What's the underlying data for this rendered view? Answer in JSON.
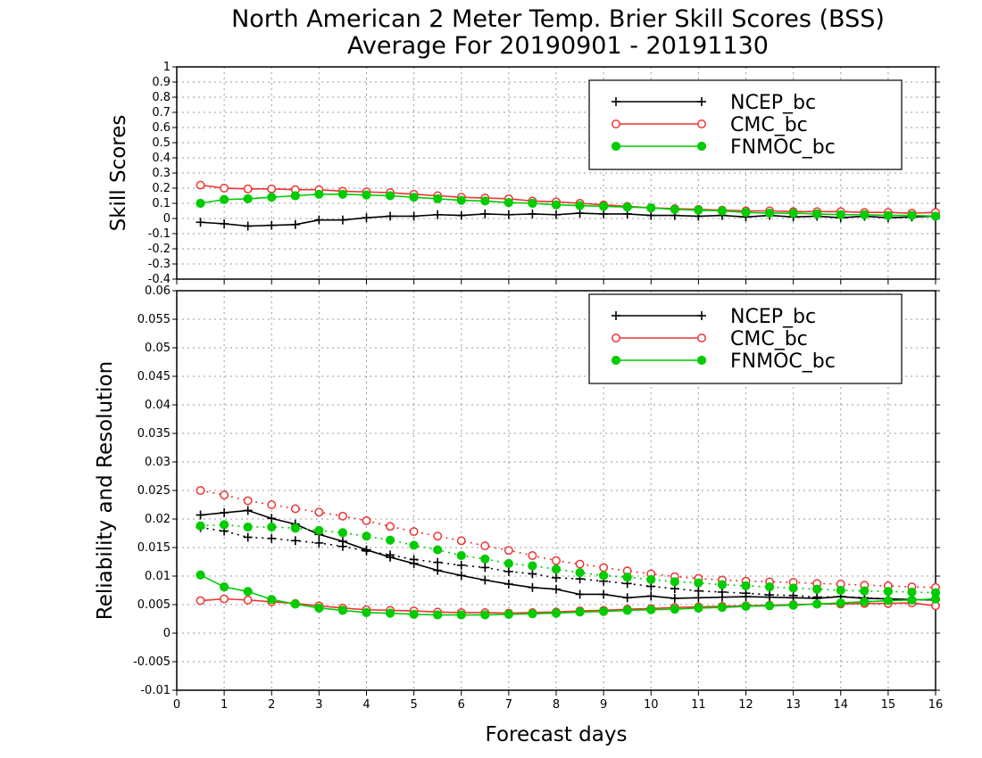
{
  "chart_data": [
    {
      "type": "line",
      "title": "North American 2 Meter Temp. Brier Skill Scores (BSS)",
      "subtitle": "Average For 20190901 - 20191130",
      "ylabel": "Skill Scores",
      "ylim": [
        -0.4,
        1
      ],
      "yticks": [
        "1",
        "0.9",
        "0.8",
        "0.7",
        "0.6",
        "0.5",
        "0.4",
        "0.3",
        "0.2",
        "0.1",
        "0",
        "-0.1",
        "-0.2",
        "-0.3",
        "-0.4"
      ],
      "xlim": [
        0,
        16
      ],
      "grid": true,
      "legend_position": "top-right",
      "x": [
        0.5,
        1,
        1.5,
        2,
        2.5,
        3,
        3.5,
        4,
        4.5,
        5,
        5.5,
        6,
        6.5,
        7,
        7.5,
        8,
        8.5,
        9,
        9.5,
        10,
        10.5,
        11,
        11.5,
        12,
        12.5,
        13,
        13.5,
        14,
        14.5,
        15,
        15.5,
        16
      ],
      "series": [
        {
          "name": "NCEP_bc",
          "color": "#000000",
          "marker": "plus",
          "line": "solid",
          "values": [
            -0.025,
            -0.035,
            -0.05,
            -0.045,
            -0.04,
            -0.01,
            -0.01,
            0.005,
            0.015,
            0.015,
            0.025,
            0.02,
            0.03,
            0.025,
            0.03,
            0.025,
            0.035,
            0.03,
            0.03,
            0.02,
            0.02,
            0.015,
            0.02,
            0.01,
            0.02,
            0.01,
            0.015,
            0.005,
            0.015,
            0.005,
            0.01,
            0.015
          ]
        },
        {
          "name": "CMC_bc",
          "color": "#ee3333",
          "marker": "open-circle",
          "line": "solid",
          "values": [
            0.22,
            0.2,
            0.195,
            0.195,
            0.19,
            0.19,
            0.18,
            0.175,
            0.17,
            0.16,
            0.15,
            0.14,
            0.135,
            0.13,
            0.115,
            0.11,
            0.1,
            0.09,
            0.08,
            0.07,
            0.065,
            0.06,
            0.055,
            0.05,
            0.05,
            0.045,
            0.045,
            0.045,
            0.04,
            0.04,
            0.035,
            0.04
          ]
        },
        {
          "name": "FNMOC_bc",
          "color": "#00cc00",
          "marker": "filled-circle",
          "line": "solid",
          "values": [
            0.1,
            0.125,
            0.13,
            0.14,
            0.15,
            0.16,
            0.16,
            0.155,
            0.15,
            0.14,
            0.13,
            0.12,
            0.115,
            0.105,
            0.1,
            0.09,
            0.085,
            0.08,
            0.075,
            0.07,
            0.06,
            0.055,
            0.05,
            0.04,
            0.035,
            0.035,
            0.03,
            0.025,
            0.025,
            0.02,
            0.02,
            0.015
          ]
        }
      ]
    },
    {
      "type": "line",
      "title": "",
      "ylabel": "Reliability and Resolution",
      "xlabel": "Forecast days",
      "ylim": [
        -0.01,
        0.06
      ],
      "yticks": [
        "0.06",
        "0.055",
        "0.05",
        "0.045",
        "0.04",
        "0.035",
        "0.03",
        "0.025",
        "0.02",
        "0.015",
        "0.01",
        "0.005",
        "0",
        "-0.005",
        "-0.01"
      ],
      "xlim": [
        0,
        16
      ],
      "xticks": [
        "0",
        "1",
        "2",
        "3",
        "4",
        "5",
        "6",
        "7",
        "8",
        "9",
        "10",
        "11",
        "12",
        "13",
        "14",
        "15",
        "16"
      ],
      "grid": true,
      "legend_position": "top-right",
      "x": [
        0.5,
        1,
        1.5,
        2,
        2.5,
        3,
        3.5,
        4,
        4.5,
        5,
        5.5,
        6,
        6.5,
        7,
        7.5,
        8,
        8.5,
        9,
        9.5,
        10,
        10.5,
        11,
        11.5,
        12,
        12.5,
        13,
        13.5,
        14,
        14.5,
        15,
        15.5,
        16
      ],
      "series": [
        {
          "name": "NCEP_bc",
          "color": "#000000",
          "marker": "plus",
          "line": "solid",
          "role": "reliability",
          "values": [
            0.0207,
            0.0211,
            0.0215,
            0.0201,
            0.0191,
            0.0173,
            0.0161,
            0.0146,
            0.0133,
            0.0122,
            0.011,
            0.0101,
            0.0093,
            0.0086,
            0.008,
            0.0077,
            0.0068,
            0.0068,
            0.0062,
            0.0065,
            0.0061,
            0.0062,
            0.0063,
            0.0064,
            0.0063,
            0.0062,
            0.0061,
            0.0064,
            0.0061,
            0.006,
            0.0059,
            0.0058
          ]
        },
        {
          "name": "NCEP_bc",
          "color": "#000000",
          "marker": "plus",
          "line": "dotted",
          "role": "resolution",
          "values": [
            0.0185,
            0.0179,
            0.0168,
            0.0166,
            0.0162,
            0.0158,
            0.0152,
            0.0144,
            0.0137,
            0.0129,
            0.0124,
            0.0119,
            0.0115,
            0.0108,
            0.0104,
            0.0097,
            0.0095,
            0.0091,
            0.0087,
            0.0082,
            0.0078,
            0.0074,
            0.0072,
            0.007,
            0.0067,
            0.0066,
            0.0063,
            0.0064,
            0.0062,
            0.006,
            0.0059,
            0.0058
          ]
        },
        {
          "name": "CMC_bc",
          "color": "#ee3333",
          "marker": "open-circle",
          "line": "solid",
          "role": "reliability",
          "values": [
            0.0057,
            0.006,
            0.0058,
            0.0055,
            0.0052,
            0.0048,
            0.0044,
            0.0041,
            0.004,
            0.0039,
            0.0037,
            0.0036,
            0.0036,
            0.0035,
            0.0036,
            0.0037,
            0.0039,
            0.004,
            0.0042,
            0.0043,
            0.0045,
            0.0046,
            0.0047,
            0.0048,
            0.0049,
            0.005,
            0.0051,
            0.0051,
            0.0052,
            0.0052,
            0.0053,
            0.0048
          ]
        },
        {
          "name": "CMC_bc",
          "color": "#ee3333",
          "marker": "open-circle",
          "line": "dotted",
          "role": "resolution",
          "values": [
            0.025,
            0.0242,
            0.0232,
            0.0225,
            0.0218,
            0.0212,
            0.0205,
            0.0197,
            0.0187,
            0.0178,
            0.017,
            0.0162,
            0.0153,
            0.0145,
            0.0136,
            0.0127,
            0.0121,
            0.0115,
            0.0109,
            0.0104,
            0.0099,
            0.0096,
            0.0093,
            0.0091,
            0.009,
            0.0089,
            0.0087,
            0.0086,
            0.0084,
            0.0083,
            0.0081,
            0.008
          ]
        },
        {
          "name": "FNMOC_bc",
          "color": "#00cc00",
          "marker": "filled-circle",
          "line": "solid",
          "role": "reliability",
          "values": [
            0.0102,
            0.0081,
            0.0073,
            0.0059,
            0.0051,
            0.0044,
            0.004,
            0.0036,
            0.0035,
            0.0033,
            0.0032,
            0.0032,
            0.0032,
            0.0033,
            0.0034,
            0.0035,
            0.0037,
            0.0038,
            0.004,
            0.0041,
            0.0042,
            0.0044,
            0.0045,
            0.0047,
            0.0048,
            0.0049,
            0.0051,
            0.0053,
            0.0055,
            0.0057,
            0.0058,
            0.006
          ]
        },
        {
          "name": "FNMOC_bc",
          "color": "#00cc00",
          "marker": "filled-circle",
          "line": "dotted",
          "role": "resolution",
          "values": [
            0.0188,
            0.019,
            0.0186,
            0.0186,
            0.0184,
            0.018,
            0.0176,
            0.017,
            0.0163,
            0.0154,
            0.0146,
            0.0136,
            0.013,
            0.0122,
            0.0118,
            0.0112,
            0.0106,
            0.0101,
            0.0098,
            0.0094,
            0.009,
            0.0088,
            0.0085,
            0.0083,
            0.0081,
            0.0079,
            0.0077,
            0.0075,
            0.0074,
            0.0073,
            0.0072,
            0.0071
          ]
        }
      ]
    }
  ]
}
